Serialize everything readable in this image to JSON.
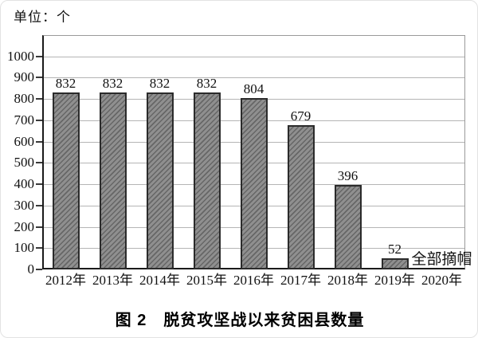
{
  "figure": {
    "unit_label": "单位：个",
    "caption": "图 2　脱贫攻坚战以来贫困县数量"
  },
  "chart_data": {
    "type": "bar",
    "title": "图 2　脱贫攻坚战以来贫困县数量",
    "unit_label": "单位：个",
    "categories": [
      "2012年",
      "2013年",
      "2014年",
      "2015年",
      "2016年",
      "2017年",
      "2018年",
      "2019年",
      "2020年"
    ],
    "values": [
      832,
      832,
      832,
      832,
      804,
      679,
      396,
      52,
      null
    ],
    "annotation": {
      "text": "全部摘帽",
      "category": "2020年"
    },
    "ylim": [
      0,
      1100
    ],
    "yticks": [
      0,
      100,
      200,
      300,
      400,
      500,
      600,
      700,
      800,
      900,
      1000
    ],
    "grid": true,
    "legend": "none",
    "colors": {
      "bar_fill": "#8f8f8f",
      "bar_hatch": "#666666",
      "bar_border": "#2b2b2b",
      "gridline": "#b5b5b5",
      "axis": "#1a1a1a",
      "frame": "#9a9a9a",
      "text": "#111111"
    }
  }
}
